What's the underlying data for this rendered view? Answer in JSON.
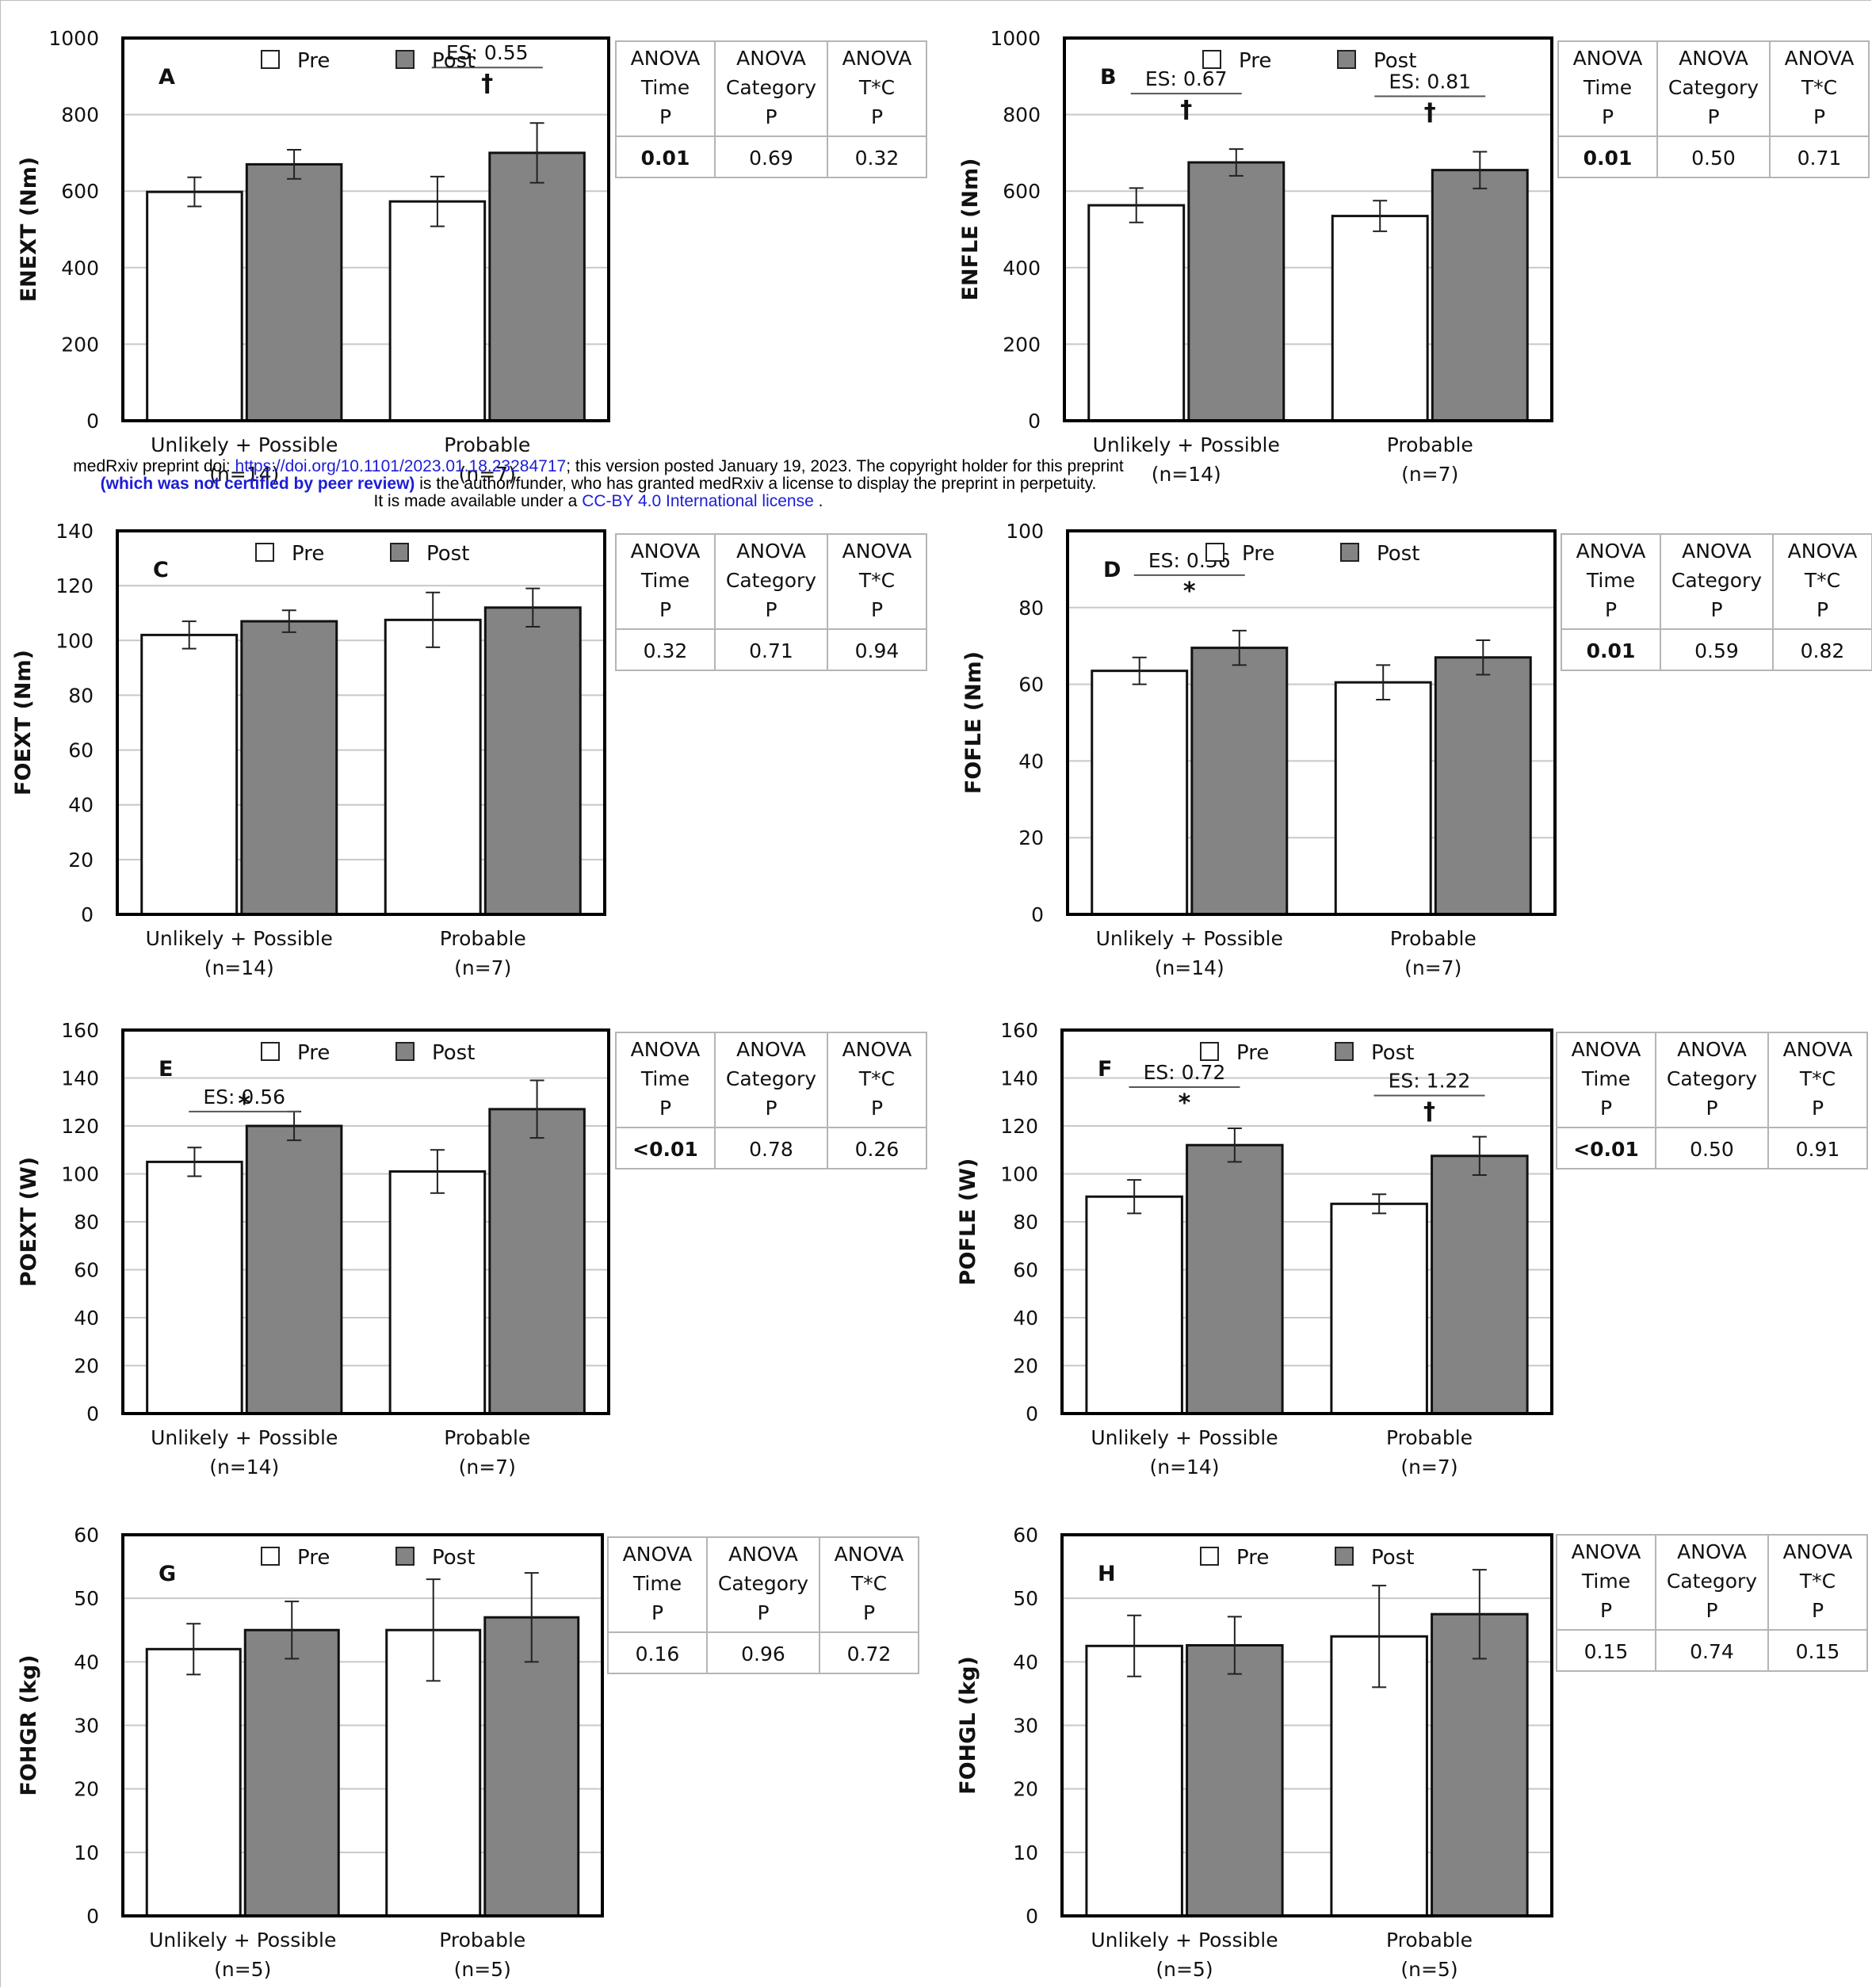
{
  "preprint_notice": {
    "line1_prefix": "medRxiv preprint doi: ",
    "line1_link": "https://doi.org/10.1101/2023.01.18.23284717",
    "line1_suffix": "; this version posted January 19, 2023. The copyright holder for this preprint",
    "line2_bold": "(which was not certified by peer review)",
    "line2_suffix": " is the author/funder, who has granted medRxiv a license to display the preprint in perpetuity.",
    "line3_prefix": "It is made available under a ",
    "line3_link": "CC-BY 4.0 International license",
    "line3_suffix": " ."
  },
  "legend": {
    "pre": "Pre",
    "post": "Post"
  },
  "colors": {
    "pre": "#ffffff",
    "post": "#848484",
    "bar_stroke": "#111111",
    "grid": "#c8c8c8",
    "frame": "#000000"
  },
  "anova_headers": [
    [
      "ANOVA",
      "Time",
      "P"
    ],
    [
      "ANOVA",
      "Category",
      "P"
    ],
    [
      "ANOVA",
      "T*C",
      "P"
    ]
  ],
  "chart_data": [
    {
      "type": "bar",
      "panel": "A",
      "ylabel": "ENEXT (Nm)",
      "ylim": [
        0,
        1000
      ],
      "yticks": [
        "0",
        "200",
        "400",
        "600",
        "800",
        "1000"
      ],
      "categories": [
        [
          "Unlikely + Possible",
          "(n=14)"
        ],
        [
          "Probable",
          "(n=7)"
        ]
      ],
      "series": [
        {
          "name": "Pre",
          "values": [
            598,
            573
          ],
          "errors": [
            38,
            65
          ]
        },
        {
          "name": "Post",
          "values": [
            670,
            700
          ],
          "errors": [
            38,
            78
          ]
        }
      ],
      "annotations": [
        {
          "category": 1,
          "es": "ES: 0.55",
          "symbol": "†"
        }
      ],
      "anova": {
        "values": [
          "0.01",
          "0.69",
          "0.32"
        ],
        "bold": [
          true,
          false,
          false
        ]
      }
    },
    {
      "type": "bar",
      "panel": "B",
      "ylabel": "ENFLE (Nm)",
      "ylim": [
        0,
        1000
      ],
      "yticks": [
        "0",
        "200",
        "400",
        "600",
        "800",
        "1000"
      ],
      "categories": [
        [
          "Unlikely + Possible",
          "(n=14)"
        ],
        [
          "Probable",
          "(n=7)"
        ]
      ],
      "series": [
        {
          "name": "Pre",
          "values": [
            563,
            535
          ],
          "errors": [
            45,
            40
          ]
        },
        {
          "name": "Post",
          "values": [
            675,
            655
          ],
          "errors": [
            35,
            48
          ]
        }
      ],
      "annotations": [
        {
          "category": 0,
          "es": "ES: 0.67",
          "symbol": "†"
        },
        {
          "category": 1,
          "es": "ES: 0.81",
          "symbol": "†"
        }
      ],
      "anova": {
        "values": [
          "0.01",
          "0.50",
          "0.71"
        ],
        "bold": [
          true,
          false,
          false
        ]
      }
    },
    {
      "type": "bar",
      "panel": "C",
      "ylabel": "FOEXT (Nm)",
      "ylim": [
        0,
        140
      ],
      "yticks": [
        "0",
        "20",
        "40",
        "60",
        "80",
        "100",
        "120",
        "140"
      ],
      "categories": [
        [
          "Unlikely + Possible",
          "(n=14)"
        ],
        [
          "Probable",
          "(n=7)"
        ]
      ],
      "series": [
        {
          "name": "Pre",
          "values": [
            102,
            107.5
          ],
          "errors": [
            5,
            10
          ]
        },
        {
          "name": "Post",
          "values": [
            107,
            112
          ],
          "errors": [
            4,
            7
          ]
        }
      ],
      "annotations": [],
      "anova": {
        "values": [
          "0.32",
          "0.71",
          "0.94"
        ],
        "bold": [
          false,
          false,
          false
        ]
      }
    },
    {
      "type": "bar",
      "panel": "D",
      "ylabel": "FOFLE (Nm)",
      "ylim": [
        0,
        100
      ],
      "yticks": [
        "0",
        "20",
        "40",
        "60",
        "80",
        "100"
      ],
      "categories": [
        [
          "Unlikely + Possible",
          "(n=14)"
        ],
        [
          "Probable",
          "(n=7)"
        ]
      ],
      "series": [
        {
          "name": "Pre",
          "values": [
            63.5,
            60.5
          ],
          "errors": [
            3.5,
            4.5
          ]
        },
        {
          "name": "Post",
          "values": [
            69.5,
            67
          ],
          "errors": [
            4.5,
            4.5
          ]
        }
      ],
      "annotations": [
        {
          "category": 0,
          "es": "ES: 0.36",
          "symbol": "*"
        }
      ],
      "anova": {
        "values": [
          "0.01",
          "0.59",
          "0.82"
        ],
        "bold": [
          true,
          false,
          false
        ]
      }
    },
    {
      "type": "bar",
      "panel": "E",
      "ylabel": "POEXT (W)",
      "ylim": [
        0,
        160
      ],
      "yticks": [
        "0",
        "20",
        "40",
        "60",
        "80",
        "100",
        "120",
        "140",
        "160"
      ],
      "categories": [
        [
          "Unlikely + Possible",
          "(n=14)"
        ],
        [
          "Probable",
          "(n=7)"
        ]
      ],
      "series": [
        {
          "name": "Pre",
          "values": [
            105,
            101
          ],
          "errors": [
            6,
            9
          ]
        },
        {
          "name": "Post",
          "values": [
            120,
            127
          ],
          "errors": [
            6,
            12
          ]
        }
      ],
      "annotations": [
        {
          "category": 0,
          "es": "ES: 0.56",
          "symbol": "*"
        }
      ],
      "anova": {
        "values": [
          "<0.01",
          "0.78",
          "0.26"
        ],
        "bold": [
          true,
          false,
          false
        ]
      }
    },
    {
      "type": "bar",
      "panel": "F",
      "ylabel": "POFLE (W)",
      "ylim": [
        0,
        160
      ],
      "yticks": [
        "0",
        "20",
        "40",
        "60",
        "80",
        "100",
        "120",
        "140",
        "160"
      ],
      "categories": [
        [
          "Unlikely + Possible",
          "(n=14)"
        ],
        [
          "Probable",
          "(n=7)"
        ]
      ],
      "series": [
        {
          "name": "Pre",
          "values": [
            90.5,
            87.5
          ],
          "errors": [
            7,
            4
          ]
        },
        {
          "name": "Post",
          "values": [
            112,
            107.5
          ],
          "errors": [
            7,
            8
          ]
        }
      ],
      "annotations": [
        {
          "category": 0,
          "es": "ES: 0.72",
          "symbol": "*"
        },
        {
          "category": 1,
          "es": "ES: 1.22",
          "symbol": "†"
        }
      ],
      "anova": {
        "values": [
          "<0.01",
          "0.50",
          "0.91"
        ],
        "bold": [
          true,
          false,
          false
        ]
      }
    },
    {
      "type": "bar",
      "panel": "G",
      "ylabel": "FOHGR (kg)",
      "ylim": [
        0,
        60
      ],
      "yticks": [
        "0",
        "10",
        "20",
        "30",
        "40",
        "50",
        "60"
      ],
      "categories": [
        [
          "Unlikely + Possible",
          "(n=5)"
        ],
        [
          "Probable",
          "(n=5)"
        ]
      ],
      "series": [
        {
          "name": "Pre",
          "values": [
            42,
            45
          ],
          "errors": [
            4,
            8
          ]
        },
        {
          "name": "Post",
          "values": [
            45,
            47
          ],
          "errors": [
            4.5,
            7
          ]
        }
      ],
      "annotations": [],
      "anova": {
        "values": [
          "0.16",
          "0.96",
          "0.72"
        ],
        "bold": [
          false,
          false,
          false
        ]
      }
    },
    {
      "type": "bar",
      "panel": "H",
      "ylabel": "FOHGL (kg)",
      "ylim": [
        0,
        60
      ],
      "yticks": [
        "0",
        "10",
        "20",
        "30",
        "40",
        "50",
        "60"
      ],
      "categories": [
        [
          "Unlikely + Possible",
          "(n=5)"
        ],
        [
          "Probable",
          "(n=5)"
        ]
      ],
      "series": [
        {
          "name": "Pre",
          "values": [
            42.5,
            44
          ],
          "errors": [
            4.8,
            8
          ]
        },
        {
          "name": "Post",
          "values": [
            42.6,
            47.5
          ],
          "errors": [
            4.5,
            7
          ]
        }
      ],
      "annotations": [],
      "anova": {
        "values": [
          "0.15",
          "0.74",
          "0.15"
        ],
        "bold": [
          false,
          false,
          false
        ]
      }
    }
  ]
}
